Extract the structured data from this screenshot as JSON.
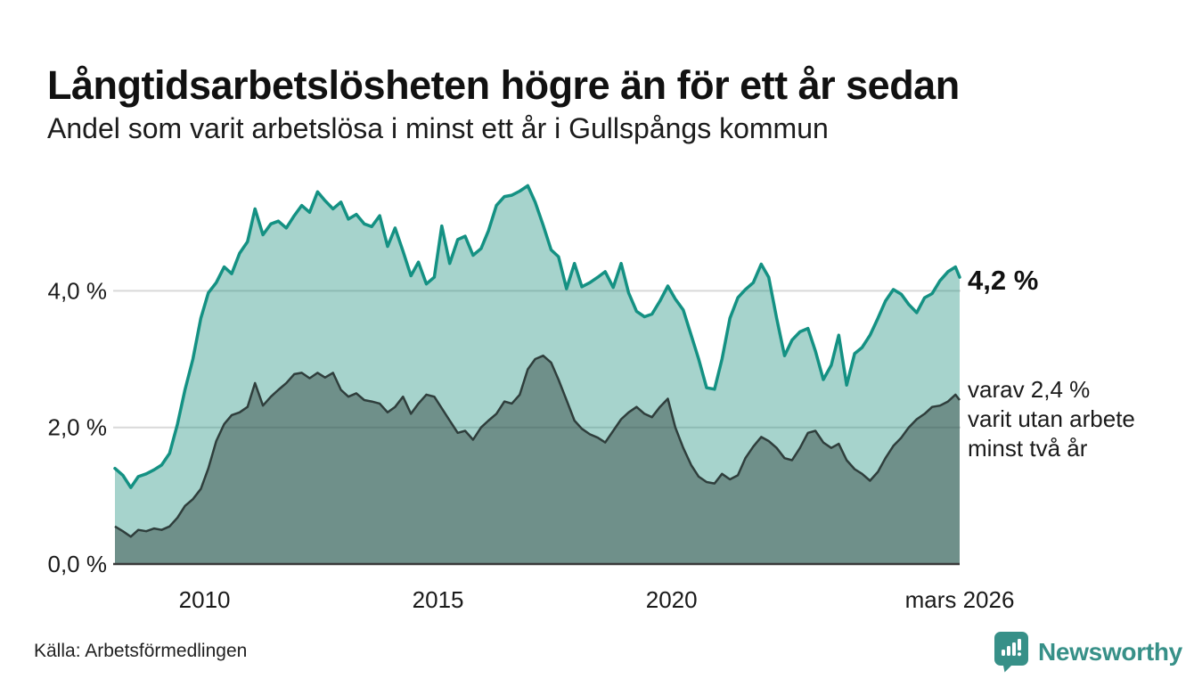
{
  "header": {
    "title": "Långtidsarbetslösheten högre än för ett år sedan",
    "subtitle": "Andel som varit arbetslösa i minst ett år i Gullspångs kommun"
  },
  "annotations": {
    "latest_total": "4,2 %",
    "latest_two_year_lines": [
      "varav 2,4 %",
      "varit utan arbete",
      "minst två år"
    ]
  },
  "source": {
    "label": "Källa: Arbetsförmedlingen"
  },
  "branding": {
    "name": "Newsworthy",
    "icon": "newsworthy-chart-speech-bubble-icon",
    "color": "#379088"
  },
  "chart_data": {
    "type": "area",
    "title": "Långtidsarbetslösheten högre än för ett år sedan",
    "subtitle": "Andel som varit arbetslösa i minst ett år i Gullspångs kommun",
    "x_unit": "decimal year (monthly data)",
    "x_range": [
      2008.08,
      2026.17
    ],
    "ylim": [
      0,
      5.8
    ],
    "grid": true,
    "grid_values": [
      2,
      4
    ],
    "yticks": [
      {
        "value": 0,
        "label": "0,0 %"
      },
      {
        "value": 2,
        "label": "2,0 %"
      },
      {
        "value": 4,
        "label": "4,0 %"
      }
    ],
    "xticks": [
      {
        "value": 2010,
        "label": "2010"
      },
      {
        "value": 2015,
        "label": "2015"
      },
      {
        "value": 2020,
        "label": "2020"
      },
      {
        "value": 2026.17,
        "label": "mars 2026"
      }
    ],
    "colors": {
      "grid": "#d9d9d9",
      "baseline": "#3a3a3a",
      "total_stroke": "#149183",
      "total_fill": "rgba(21,140,121,0.38)",
      "two_plus_stroke": "#2f3e3c",
      "two_plus_fill": "rgba(44,62,58,0.45)"
    },
    "x": [
      2008.08,
      2008.25,
      2008.42,
      2008.58,
      2008.75,
      2008.92,
      2009.08,
      2009.25,
      2009.42,
      2009.58,
      2009.75,
      2009.92,
      2010.08,
      2010.25,
      2010.42,
      2010.58,
      2010.75,
      2010.92,
      2011.08,
      2011.25,
      2011.42,
      2011.58,
      2011.75,
      2011.92,
      2012.08,
      2012.25,
      2012.42,
      2012.58,
      2012.75,
      2012.92,
      2013.08,
      2013.25,
      2013.42,
      2013.58,
      2013.75,
      2013.92,
      2014.08,
      2014.25,
      2014.42,
      2014.58,
      2014.75,
      2014.92,
      2015.08,
      2015.25,
      2015.42,
      2015.58,
      2015.75,
      2015.92,
      2016.08,
      2016.25,
      2016.42,
      2016.58,
      2016.75,
      2016.92,
      2017.08,
      2017.25,
      2017.42,
      2017.58,
      2017.75,
      2017.92,
      2018.08,
      2018.25,
      2018.42,
      2018.58,
      2018.75,
      2018.92,
      2019.08,
      2019.25,
      2019.42,
      2019.58,
      2019.75,
      2019.92,
      2020.08,
      2020.25,
      2020.42,
      2020.58,
      2020.75,
      2020.92,
      2021.08,
      2021.25,
      2021.42,
      2021.58,
      2021.75,
      2021.92,
      2022.08,
      2022.25,
      2022.42,
      2022.58,
      2022.75,
      2022.92,
      2023.08,
      2023.25,
      2023.42,
      2023.58,
      2023.75,
      2023.92,
      2024.08,
      2024.25,
      2024.42,
      2024.58,
      2024.75,
      2024.92,
      2025.08,
      2025.25,
      2025.42,
      2025.58,
      2025.75,
      2025.92,
      2026.08,
      2026.17
    ],
    "series": [
      {
        "name": "Arbetslösa minst ett år",
        "last_value_label": "4,2 %",
        "values": [
          1.4,
          1.3,
          1.12,
          1.28,
          1.32,
          1.38,
          1.45,
          1.62,
          2.05,
          2.55,
          3.0,
          3.6,
          3.97,
          4.12,
          4.35,
          4.25,
          4.55,
          4.72,
          5.2,
          4.82,
          4.98,
          5.02,
          4.92,
          5.1,
          5.25,
          5.15,
          5.45,
          5.32,
          5.2,
          5.3,
          5.05,
          5.12,
          4.98,
          4.94,
          5.1,
          4.65,
          4.92,
          4.58,
          4.22,
          4.42,
          4.1,
          4.2,
          4.95,
          4.4,
          4.75,
          4.8,
          4.52,
          4.62,
          4.88,
          5.25,
          5.38,
          5.4,
          5.46,
          5.54,
          5.3,
          4.96,
          4.6,
          4.5,
          4.03,
          4.4,
          4.06,
          4.12,
          4.2,
          4.28,
          4.05,
          4.4,
          3.97,
          3.7,
          3.62,
          3.66,
          3.85,
          4.07,
          3.88,
          3.72,
          3.35,
          3.0,
          2.58,
          2.56,
          3.0,
          3.6,
          3.9,
          4.02,
          4.12,
          4.39,
          4.2,
          3.6,
          3.05,
          3.28,
          3.4,
          3.45,
          3.12,
          2.7,
          2.91,
          3.35,
          2.62,
          3.08,
          3.17,
          3.35,
          3.6,
          3.85,
          4.02,
          3.95,
          3.8,
          3.68,
          3.9,
          3.96,
          4.15,
          4.28,
          4.35,
          4.2
        ]
      },
      {
        "name": "varav utan arbete minst två år",
        "last_value_label": "2,4 %",
        "values": [
          0.55,
          0.48,
          0.4,
          0.5,
          0.48,
          0.52,
          0.5,
          0.55,
          0.68,
          0.85,
          0.95,
          1.1,
          1.4,
          1.8,
          2.05,
          2.18,
          2.22,
          2.3,
          2.65,
          2.32,
          2.45,
          2.55,
          2.65,
          2.78,
          2.8,
          2.72,
          2.8,
          2.73,
          2.8,
          2.55,
          2.45,
          2.5,
          2.4,
          2.38,
          2.35,
          2.22,
          2.3,
          2.45,
          2.2,
          2.35,
          2.48,
          2.45,
          2.28,
          2.1,
          1.92,
          1.95,
          1.82,
          2.0,
          2.1,
          2.2,
          2.38,
          2.35,
          2.48,
          2.85,
          3.0,
          3.05,
          2.95,
          2.7,
          2.4,
          2.1,
          1.98,
          1.9,
          1.85,
          1.78,
          1.95,
          2.12,
          2.22,
          2.3,
          2.2,
          2.15,
          2.3,
          2.42,
          2.0,
          1.7,
          1.45,
          1.28,
          1.2,
          1.18,
          1.32,
          1.24,
          1.3,
          1.55,
          1.72,
          1.86,
          1.8,
          1.7,
          1.55,
          1.52,
          1.7,
          1.92,
          1.95,
          1.78,
          1.7,
          1.76,
          1.52,
          1.39,
          1.32,
          1.22,
          1.35,
          1.55,
          1.73,
          1.85,
          2.0,
          2.12,
          2.2,
          2.3,
          2.32,
          2.38,
          2.48,
          2.4
        ]
      }
    ],
    "legend_position": "right-annotations"
  }
}
